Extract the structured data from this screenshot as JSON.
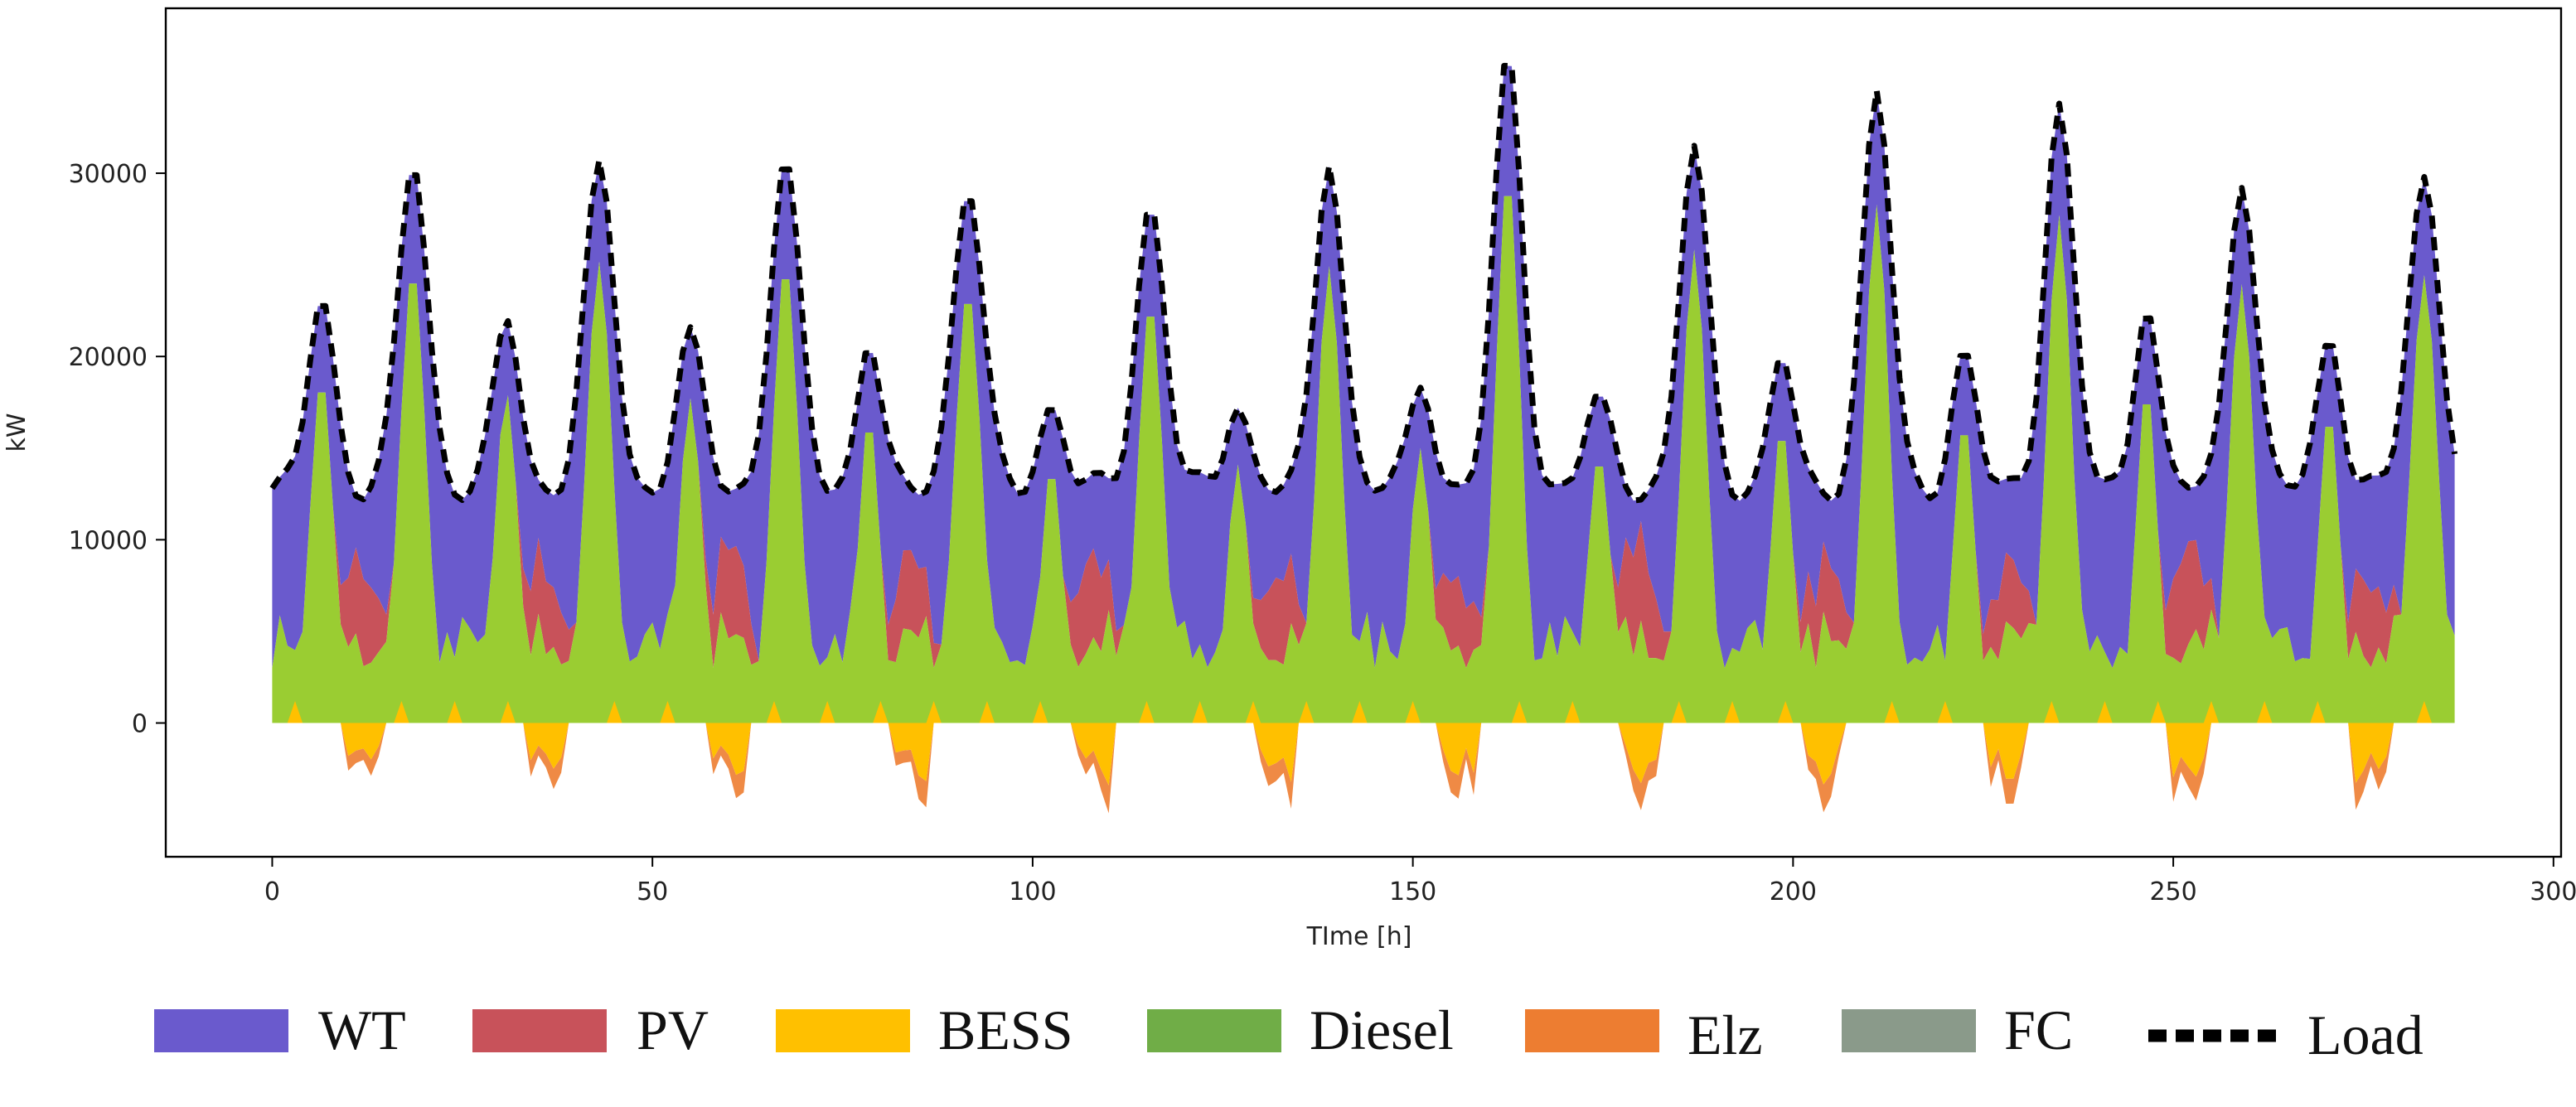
{
  "chart_data": {
    "type": "area",
    "title": "",
    "xlabel": "TIme [h]",
    "ylabel": "kW",
    "xlim": [
      -14,
      301
    ],
    "ylim": [
      -7300,
      39000
    ],
    "x_ticks": [
      0,
      50,
      100,
      150,
      200,
      250,
      300
    ],
    "y_ticks": [
      0,
      10000,
      20000,
      30000
    ],
    "grid": false,
    "legend_position": "bottom",
    "day_peaks": [
      {
        "center": 6.5,
        "peak": 23200,
        "width": 2.4
      },
      {
        "center": 18.5,
        "peak": 30500,
        "width": 2.7
      },
      {
        "center": 30.8,
        "peak": 22000,
        "width": 2.4
      },
      {
        "center": 43,
        "peak": 30700,
        "width": 2.7
      },
      {
        "center": 55,
        "peak": 21600,
        "width": 2.4
      },
      {
        "center": 67.5,
        "peak": 30800,
        "width": 2.7
      },
      {
        "center": 78.5,
        "peak": 20600,
        "width": 2.2
      },
      {
        "center": 91.5,
        "peak": 29000,
        "width": 2.8
      },
      {
        "center": 102.5,
        "peak": 17300,
        "width": 2.2
      },
      {
        "center": 115.5,
        "peak": 28300,
        "width": 2.6
      },
      {
        "center": 127,
        "peak": 17200,
        "width": 2.2
      },
      {
        "center": 139,
        "peak": 30400,
        "width": 2.6
      },
      {
        "center": 151,
        "peak": 18300,
        "width": 2.2
      },
      {
        "center": 162.5,
        "peak": 36700,
        "width": 2.6
      },
      {
        "center": 174.5,
        "peak": 18000,
        "width": 2.4
      },
      {
        "center": 187,
        "peak": 31500,
        "width": 2.6
      },
      {
        "center": 198.5,
        "peak": 20000,
        "width": 2.2
      },
      {
        "center": 211,
        "peak": 34500,
        "width": 2.6
      },
      {
        "center": 222.5,
        "peak": 20400,
        "width": 2.2
      },
      {
        "center": 235,
        "peak": 33800,
        "width": 2.6
      },
      {
        "center": 246.5,
        "peak": 22600,
        "width": 2.2
      },
      {
        "center": 259,
        "peak": 29200,
        "width": 2.6
      },
      {
        "center": 270.5,
        "peak": 21000,
        "width": 2.2
      },
      {
        "center": 283,
        "peak": 29800,
        "width": 2.8
      }
    ],
    "series": [
      {
        "name": "WT",
        "color": "#6A5ACD"
      },
      {
        "name": "PV",
        "color": "#C8525A"
      },
      {
        "name": "BESS",
        "color": "#FFC000"
      },
      {
        "name": "Diesel",
        "color": "#70AD47"
      },
      {
        "name": "Elz",
        "color": "#ED7D31"
      },
      {
        "name": "FC",
        "color": "#8A9A8A"
      },
      {
        "name": "Load",
        "color": "#000000",
        "style": "dashed"
      }
    ]
  },
  "legend": {
    "wt": "WT",
    "pv": "PV",
    "bess": "BESS",
    "diesel": "Diesel",
    "elz": "Elz",
    "fc": "FC",
    "load": "Load"
  }
}
